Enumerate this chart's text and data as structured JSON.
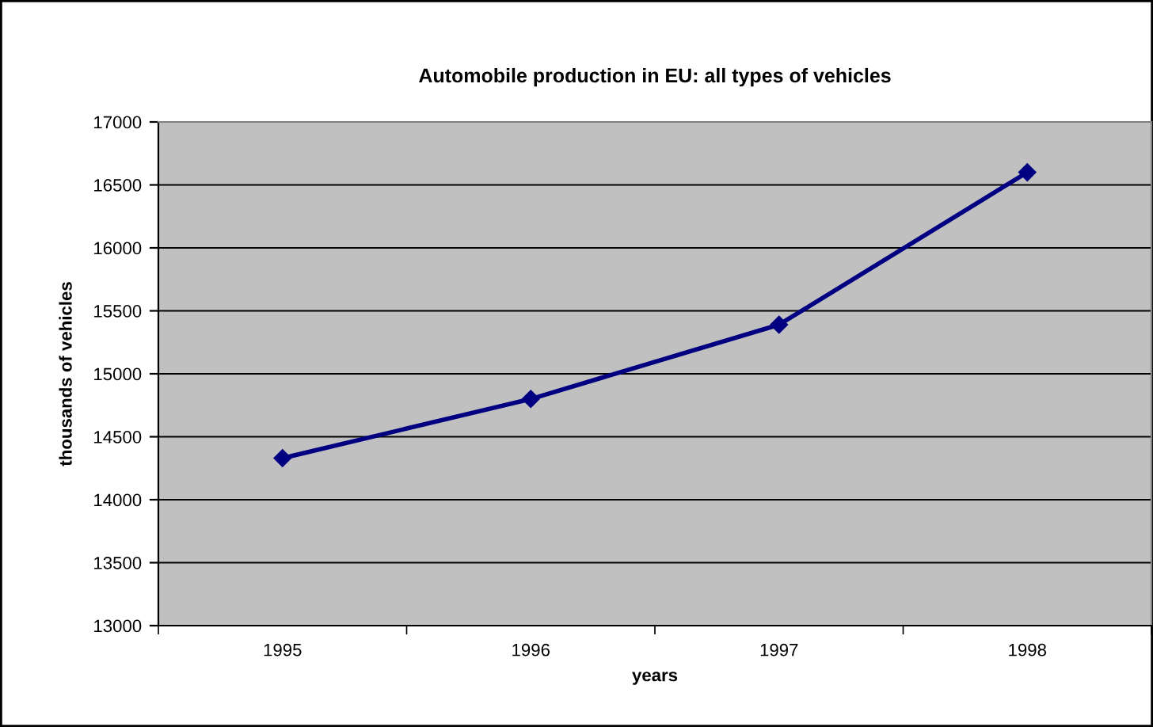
{
  "chart_data": {
    "type": "line",
    "title": "Automobile production in EU: all types of vehicles",
    "xlabel": "years",
    "ylabel": "thousands of vehicles",
    "categories": [
      "1995",
      "1996",
      "1997",
      "1998"
    ],
    "series": [
      {
        "color": "#000080",
        "values": [
          14330,
          14800,
          15390,
          16600
        ]
      }
    ],
    "ylim": [
      13000,
      17000
    ],
    "yticks": [
      13000,
      13500,
      14000,
      14500,
      15000,
      15500,
      16000,
      16500,
      17000
    ],
    "grid": "y",
    "marker": "diamond",
    "line_style": "solid"
  }
}
